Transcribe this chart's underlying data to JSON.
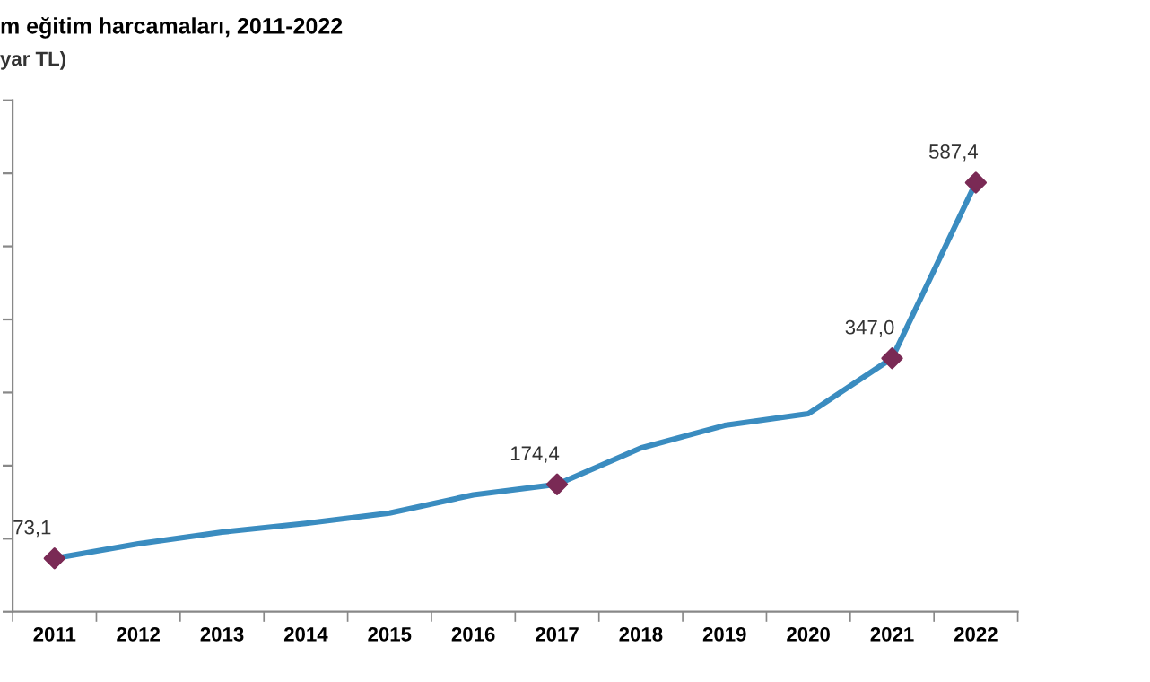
{
  "chart_data": {
    "type": "line",
    "title": "m eğitim harcamaları, 2011-2022",
    "subtitle": "yar TL)",
    "categories": [
      "2011",
      "2012",
      "2013",
      "2014",
      "2015",
      "2016",
      "2017",
      "2018",
      "2019",
      "2020",
      "2021",
      "2022"
    ],
    "series": [
      {
        "color": "#3a8cc0",
        "marker": "none",
        "values": [
          73.1,
          93,
          109,
          121,
          135,
          160,
          174.4,
          224,
          255,
          271,
          347.0,
          587.4
        ]
      },
      {
        "type": "scatter",
        "color": "#7a2a55",
        "values": [
          73.1,
          null,
          null,
          null,
          null,
          null,
          174.4,
          null,
          null,
          null,
          347.0,
          587.4
        ],
        "value_labels": [
          "73,1",
          null,
          null,
          null,
          null,
          null,
          "174,4",
          null,
          null,
          null,
          "347,0",
          "587,4"
        ]
      }
    ],
    "ylim": [
      0,
      700
    ],
    "yticks": [
      {
        "value": 0,
        "label": null
      },
      {
        "value": 100,
        "label": null
      },
      {
        "value": 200,
        "label": null
      },
      {
        "value": 300,
        "label": null
      },
      {
        "value": 400,
        "label": null
      },
      {
        "value": 500,
        "label": null
      },
      {
        "value": 600,
        "label": null
      },
      {
        "value": 700,
        "label": null
      }
    ],
    "tick_labels": "x",
    "marker": "diamond",
    "line_style": "solid",
    "grid": false,
    "legend": false
  }
}
